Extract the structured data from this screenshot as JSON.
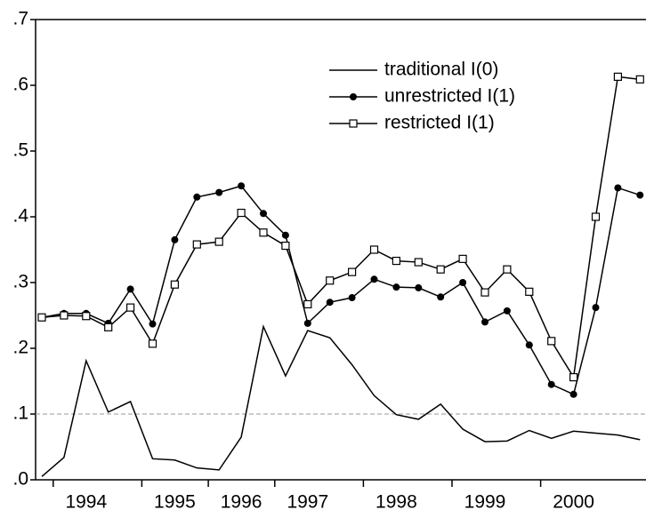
{
  "chart_data": {
    "type": "line",
    "categories": [
      null,
      null,
      "1994",
      null,
      null,
      null,
      "1995",
      null,
      null,
      "1996",
      null,
      null,
      "1997",
      null,
      null,
      null,
      "1998",
      null,
      null,
      null,
      "1999",
      null,
      null,
      null,
      "2000",
      null,
      null,
      null
    ],
    "series": [
      {
        "name": "traditional I(0)",
        "color": "#000000",
        "marker": "none",
        "values": [
          0.005,
          0.034,
          0.181,
          0.103,
          0.119,
          0.032,
          0.03,
          0.018,
          0.015,
          0.065,
          0.233,
          0.158,
          0.227,
          0.216,
          0.175,
          0.128,
          0.099,
          0.092,
          0.115,
          0.077,
          0.058,
          0.059,
          0.075,
          0.063,
          0.074,
          0.071,
          0.068,
          0.061
        ]
      },
      {
        "name": "unrestricted I(1)",
        "color": "#000000",
        "marker": "dot",
        "values": [
          0.247,
          0.253,
          0.253,
          0.238,
          0.29,
          0.237,
          0.365,
          0.43,
          0.437,
          0.447,
          0.405,
          0.372,
          0.238,
          0.27,
          0.277,
          0.305,
          0.293,
          0.292,
          0.278,
          0.3,
          0.24,
          0.257,
          0.205,
          0.145,
          0.13,
          0.262,
          0.444,
          0.433
        ]
      },
      {
        "name": "restricted I(1)",
        "color": "#000000",
        "marker": "square",
        "values": [
          0.247,
          0.25,
          0.249,
          0.232,
          0.262,
          0.207,
          0.297,
          0.358,
          0.362,
          0.406,
          0.376,
          0.356,
          0.267,
          0.303,
          0.316,
          0.35,
          0.333,
          0.331,
          0.32,
          0.336,
          0.285,
          0.32,
          0.286,
          0.211,
          0.156,
          0.4,
          0.613,
          0.609
        ]
      }
    ],
    "ylim": [
      0,
      0.7
    ],
    "yticks": [
      {
        "value": 0,
        "label": ".0"
      },
      {
        "value": 0.1,
        "label": ".1"
      },
      {
        "value": 0.2,
        "label": ".2"
      },
      {
        "value": 0.3,
        "label": ".3"
      },
      {
        "value": 0.4,
        "label": ".4"
      },
      {
        "value": 0.5,
        "label": ".5"
      },
      {
        "value": 0.6,
        "label": ".6"
      },
      {
        "value": 0.7,
        "label": ".7"
      }
    ],
    "reference_line": 0.1,
    "legend": "top"
  }
}
